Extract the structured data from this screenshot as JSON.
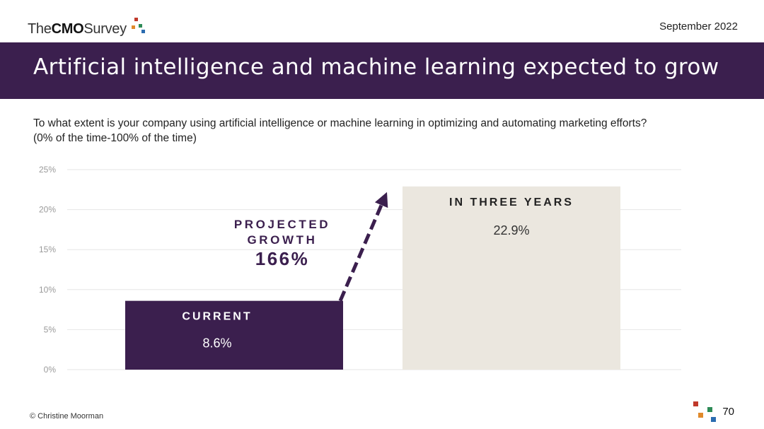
{
  "header": {
    "logo": {
      "text_pre": "The",
      "text_bold": "CMO",
      "text_post": "Survey",
      "square_colors": [
        "#c0392b",
        "#2e8b57",
        "#e08a2c",
        "#2b6cb0"
      ]
    },
    "date": "September 2022",
    "title": "Artificial intelligence and machine learning expected to grow"
  },
  "question": {
    "line1": "To what extent is your company using artificial intelligence or machine learning in optimizing and automating marketing efforts?",
    "line2": "(0% of the time-100% of the time)"
  },
  "colors": {
    "banner": "#3b1f4e",
    "current_bar": "#3b1f4e",
    "future_bar": "#ebe7df",
    "arrow": "#3b1f4e",
    "gridline": "#e6e6e6",
    "axis_text": "#9a9a9a"
  },
  "chart_data": {
    "type": "bar",
    "categories": [
      "CURRENT",
      "IN THREE YEARS"
    ],
    "values": [
      8.6,
      22.9
    ],
    "value_labels": [
      "8.6%",
      "22.9%"
    ],
    "ylim": [
      0,
      25
    ],
    "yticks": [
      0,
      5,
      10,
      15,
      20,
      25
    ],
    "ytick_labels": [
      "0%",
      "5%",
      "10%",
      "15%",
      "20%",
      "25%"
    ],
    "grid": true,
    "annotation": {
      "line1": "PROJECTED",
      "line2": "GROWTH",
      "value": "166%"
    }
  },
  "footer": {
    "copyright": "© Christine Moorman",
    "page_number": "70"
  }
}
